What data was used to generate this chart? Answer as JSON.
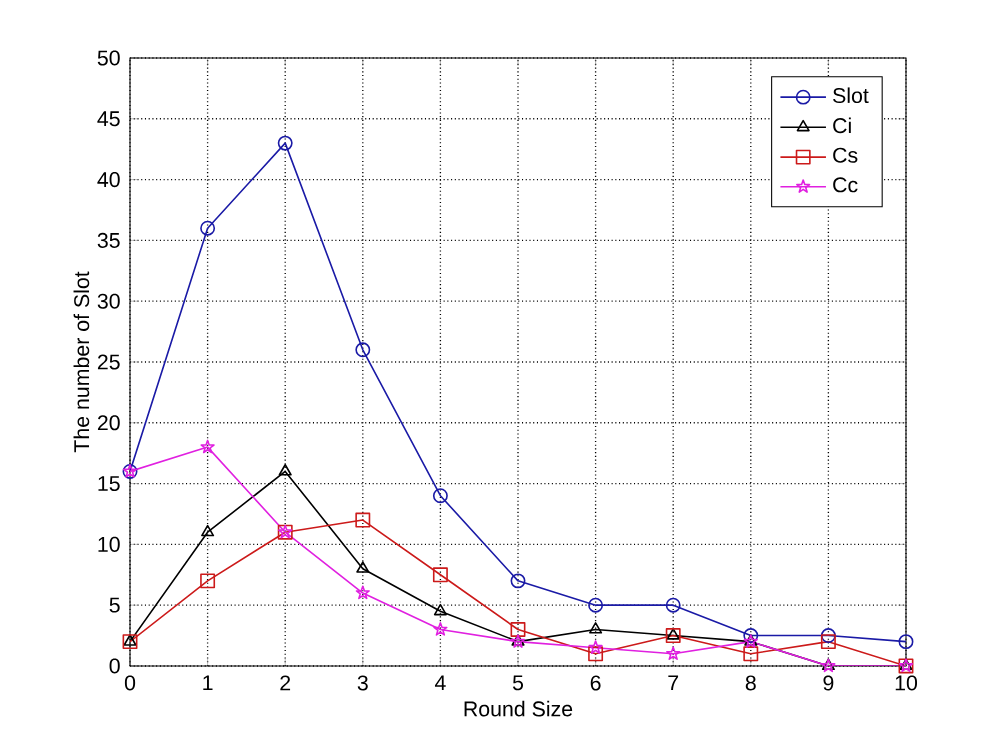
{
  "chart_data": {
    "type": "line",
    "xlabel": "Round Size",
    "ylabel": "The number of Slot",
    "x": [
      0,
      1,
      2,
      3,
      4,
      5,
      6,
      7,
      8,
      9,
      10
    ],
    "series": [
      {
        "name": "Slot",
        "color": "#1a1aa6",
        "marker": "circle",
        "values": [
          16,
          36,
          43,
          26,
          14,
          7,
          5,
          5,
          2.5,
          2.5,
          2
        ]
      },
      {
        "name": "Ci",
        "color": "#000000",
        "marker": "triangle",
        "values": [
          2,
          11,
          16,
          8,
          4.5,
          2,
          3,
          2.5,
          2,
          0,
          0
        ]
      },
      {
        "name": "Cs",
        "color": "#cc1a1a",
        "marker": "square",
        "values": [
          2,
          7,
          11,
          12,
          7.5,
          3,
          1,
          2.5,
          1,
          2,
          0
        ]
      },
      {
        "name": "Cc",
        "color": "#e020e0",
        "marker": "star",
        "values": [
          16,
          18,
          11,
          6,
          3,
          2,
          1.5,
          1,
          2,
          0,
          0
        ]
      }
    ],
    "xlim": [
      0,
      10
    ],
    "ylim": [
      0,
      50
    ],
    "xticks": [
      0,
      1,
      2,
      3,
      4,
      5,
      6,
      7,
      8,
      9,
      10
    ],
    "yticks": [
      0,
      5,
      10,
      15,
      20,
      25,
      30,
      35,
      40,
      45,
      50
    ],
    "grid": true,
    "legend": "top right",
    "line_style": "solid"
  }
}
